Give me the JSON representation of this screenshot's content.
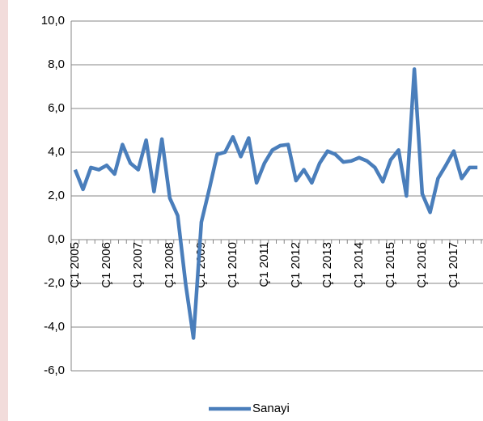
{
  "chart_data": {
    "type": "line",
    "categories": [
      "Ç1 2005",
      null,
      null,
      null,
      "Ç1 2006",
      null,
      null,
      null,
      "Ç1 2007",
      null,
      null,
      null,
      "Ç1 2008",
      null,
      null,
      null,
      "Ç1 2009",
      null,
      null,
      null,
      "Ç1 2010",
      null,
      null,
      null,
      "Ç1 2011",
      null,
      null,
      null,
      "Ç1 2012",
      null,
      null,
      null,
      "Ç1 2013",
      null,
      null,
      null,
      "Ç1 2014",
      null,
      null,
      null,
      "Ç1 2015",
      null,
      null,
      null,
      "Ç1 2016",
      null,
      null,
      null,
      "Ç1 2017",
      null,
      null,
      null
    ],
    "series": [
      {
        "name": "Sanayi",
        "color": "#4a7ebb",
        "values": [
          3.2,
          2.3,
          3.3,
          3.2,
          3.4,
          3.0,
          4.35,
          3.5,
          3.2,
          4.55,
          2.2,
          4.6,
          1.9,
          1.1,
          -2.0,
          -4.5,
          0.8,
          2.3,
          3.9,
          4.0,
          4.7,
          3.8,
          4.65,
          2.6,
          3.5,
          4.1,
          4.3,
          4.35,
          2.7,
          3.2,
          2.6,
          3.5,
          4.05,
          3.9,
          3.55,
          3.6,
          3.75,
          3.6,
          3.3,
          2.65,
          3.65,
          4.1,
          2.0,
          7.8,
          2.1,
          1.25,
          2.8,
          3.4,
          4.05,
          2.8,
          3.3,
          3.3
        ]
      }
    ],
    "ylim": [
      -6,
      10
    ],
    "yticks": [
      {
        "value": -6,
        "label": "-6,0"
      },
      {
        "value": -4,
        "label": "-4,0"
      },
      {
        "value": -2,
        "label": "-2,0"
      },
      {
        "value": 0,
        "label": "0,0"
      },
      {
        "value": 2,
        "label": "2,0"
      },
      {
        "value": 4,
        "label": "4,0"
      },
      {
        "value": 6,
        "label": "6,0"
      },
      {
        "value": 8,
        "label": "8,0"
      },
      {
        "value": 10,
        "label": "10,0"
      }
    ],
    "grid": true,
    "legend": "bottom"
  }
}
